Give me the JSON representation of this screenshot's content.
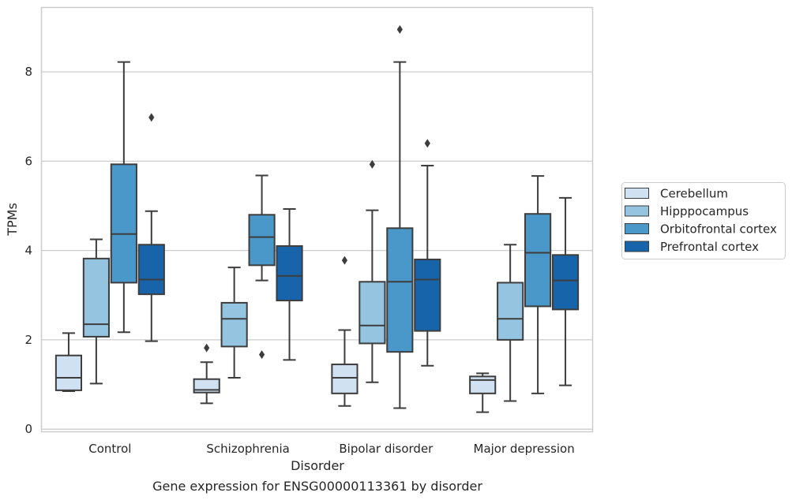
{
  "chart_data": {
    "type": "box",
    "title": "",
    "caption": "Gene expression for ENSG00000113361 by disorder",
    "xlabel": "Disorder",
    "ylabel": "TPMs",
    "ylim": [
      -0.05,
      9.45
    ],
    "yticks": [
      0,
      2,
      4,
      6,
      8
    ],
    "grid": "horizontal",
    "legend_placement": "right",
    "categories": [
      "Control",
      "Schizophrenia",
      "Bipolar disorder",
      "Major depression"
    ],
    "series": [
      {
        "name": "Cerebellum",
        "color": "#d0e1f2",
        "boxes": [
          {
            "whislo": 0.85,
            "q1": 0.87,
            "med": 1.15,
            "q3": 1.65,
            "whishi": 2.15,
            "fliers": []
          },
          {
            "whislo": 0.58,
            "q1": 0.82,
            "med": 0.88,
            "q3": 1.12,
            "whishi": 1.5,
            "fliers": [
              1.82
            ]
          },
          {
            "whislo": 0.52,
            "q1": 0.8,
            "med": 1.15,
            "q3": 1.45,
            "whishi": 2.22,
            "fliers": [
              3.78
            ]
          },
          {
            "whislo": 0.38,
            "q1": 0.8,
            "med": 1.1,
            "q3": 1.18,
            "whishi": 1.25,
            "fliers": []
          }
        ]
      },
      {
        "name": "Hipppocampus",
        "color": "#94c4df",
        "boxes": [
          {
            "whislo": 1.02,
            "q1": 2.07,
            "med": 2.35,
            "q3": 3.82,
            "whishi": 4.25,
            "fliers": []
          },
          {
            "whislo": 1.15,
            "q1": 1.85,
            "med": 2.47,
            "q3": 2.83,
            "whishi": 3.62,
            "fliers": []
          },
          {
            "whislo": 1.05,
            "q1": 1.92,
            "med": 2.32,
            "q3": 3.3,
            "whishi": 4.9,
            "fliers": [
              5.93
            ]
          },
          {
            "whislo": 0.63,
            "q1": 2.0,
            "med": 2.47,
            "q3": 3.28,
            "whishi": 4.13,
            "fliers": []
          }
        ]
      },
      {
        "name": "Orbitofrontal cortex",
        "color": "#4a98c9",
        "boxes": [
          {
            "whislo": 2.17,
            "q1": 3.28,
            "med": 4.37,
            "q3": 5.93,
            "whishi": 8.22,
            "fliers": []
          },
          {
            "whislo": 3.33,
            "q1": 3.67,
            "med": 4.3,
            "q3": 4.8,
            "whishi": 5.68,
            "fliers": [
              1.67
            ]
          },
          {
            "whislo": 0.47,
            "q1": 1.73,
            "med": 3.3,
            "q3": 4.5,
            "whishi": 8.22,
            "fliers": [
              8.95
            ]
          },
          {
            "whislo": 0.8,
            "q1": 2.75,
            "med": 3.95,
            "q3": 4.82,
            "whishi": 5.67,
            "fliers": []
          }
        ]
      },
      {
        "name": "Prefrontal cortex",
        "color": "#1764ab",
        "boxes": [
          {
            "whislo": 1.97,
            "q1": 3.02,
            "med": 3.35,
            "q3": 4.13,
            "whishi": 4.88,
            "fliers": [
              6.98
            ]
          },
          {
            "whislo": 1.55,
            "q1": 2.88,
            "med": 3.43,
            "q3": 4.1,
            "whishi": 4.93,
            "fliers": []
          },
          {
            "whislo": 1.42,
            "q1": 2.2,
            "med": 3.35,
            "q3": 3.8,
            "whishi": 5.9,
            "fliers": [
              6.4
            ]
          },
          {
            "whislo": 0.98,
            "q1": 2.68,
            "med": 3.33,
            "q3": 3.9,
            "whishi": 5.18,
            "fliers": []
          }
        ]
      }
    ]
  }
}
